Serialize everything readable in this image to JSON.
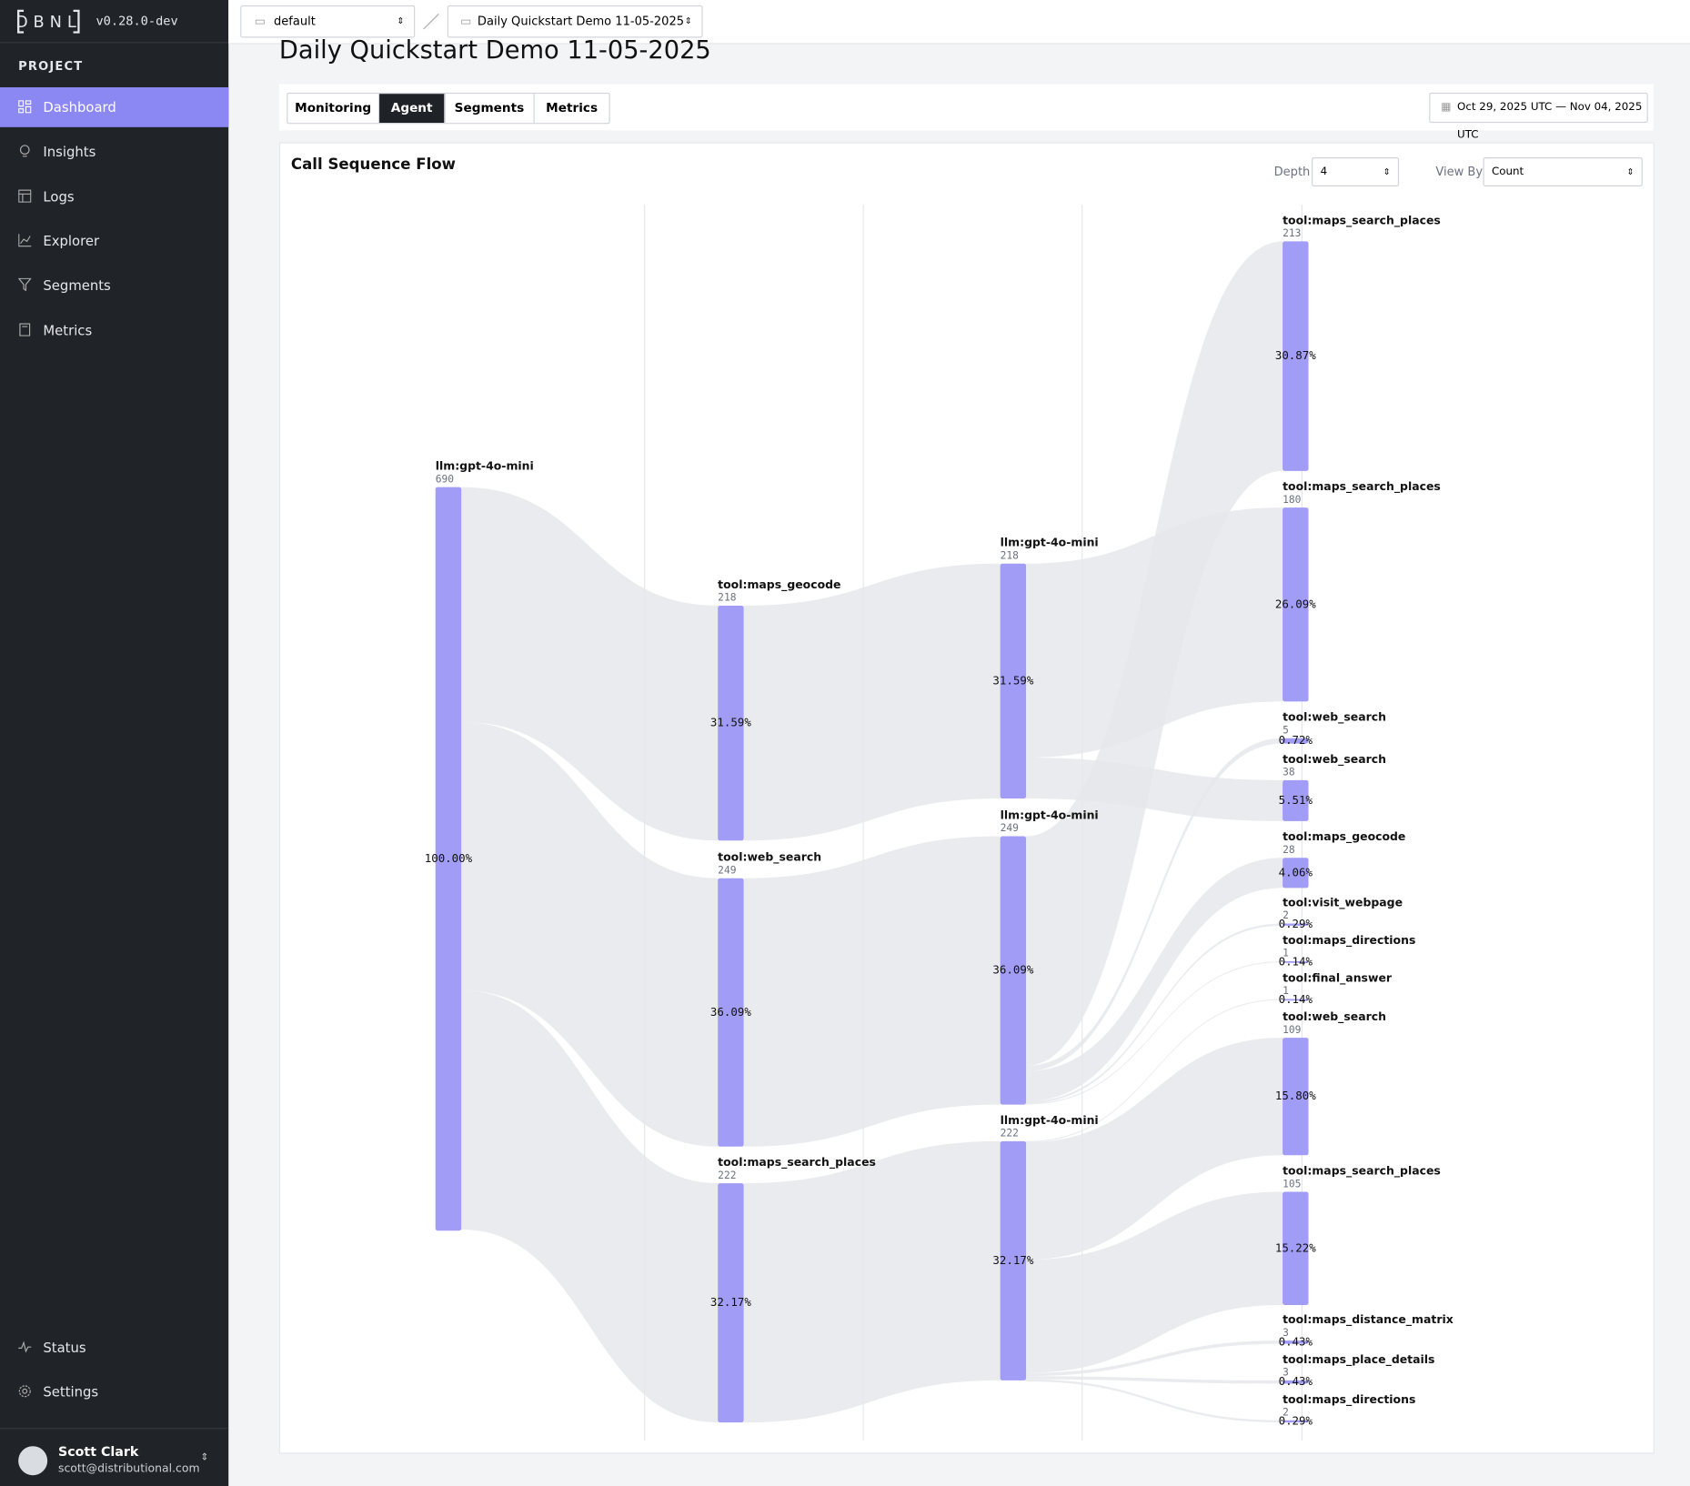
{
  "sidebar": {
    "logo": "DBNL",
    "version": "v0.28.0-dev",
    "section": "PROJECT",
    "nav": [
      "Dashboard",
      "Insights",
      "Logs",
      "Explorer",
      "Segments",
      "Metrics"
    ],
    "footer_nav": [
      "Status",
      "Settings"
    ],
    "user": {
      "name": "Scott Clark",
      "email": "scott@distributional.com"
    }
  },
  "topbar": {
    "namespace": "default",
    "project": "Daily Quickstart Demo 11-05-2025"
  },
  "page": {
    "title": "Daily Quickstart Demo 11-05-2025",
    "tabs": [
      "Monitoring",
      "Agent",
      "Segments",
      "Metrics"
    ],
    "date_range": "Oct 29, 2025 UTC — Nov 04, 2025 UTC"
  },
  "flow": {
    "title": "Call Sequence Flow",
    "depth_label": "Depth",
    "depth": 4,
    "view_by_label": "View By",
    "view_by": "Count",
    "columns": [
      [
        {
          "label": "llm:gpt-4o-mini",
          "value": 690,
          "percent": "100.00%"
        }
      ],
      [
        {
          "label": "tool:maps_geocode",
          "value": 218,
          "percent": "31.59%"
        },
        {
          "label": "tool:web_search",
          "value": 249,
          "percent": "36.09%"
        },
        {
          "label": "tool:maps_search_places",
          "value": 222,
          "percent": "32.17%"
        }
      ],
      [
        {
          "label": "llm:gpt-4o-mini",
          "value": 218,
          "percent": "31.59%"
        },
        {
          "label": "llm:gpt-4o-mini",
          "value": 249,
          "percent": "36.09%"
        },
        {
          "label": "llm:gpt-4o-mini",
          "value": 222,
          "percent": "32.17%"
        }
      ],
      [
        {
          "label": "tool:maps_search_places",
          "value": 213,
          "percent": "30.87%"
        },
        {
          "label": "tool:maps_search_places",
          "value": 180,
          "percent": "26.09%"
        },
        {
          "label": "tool:web_search",
          "value": 5,
          "percent": "0.72%"
        },
        {
          "label": "tool:web_search",
          "value": 38,
          "percent": "5.51%"
        },
        {
          "label": "tool:maps_geocode",
          "value": 28,
          "percent": "4.06%"
        },
        {
          "label": "tool:visit_webpage",
          "value": 2,
          "percent": "0.29%"
        },
        {
          "label": "tool:maps_directions",
          "value": 1,
          "percent": "0.14%"
        },
        {
          "label": "tool:final_answer",
          "value": 1,
          "percent": "0.14%"
        },
        {
          "label": "tool:web_search",
          "value": 109,
          "percent": "15.80%"
        },
        {
          "label": "tool:maps_search_places",
          "value": 105,
          "percent": "15.22%"
        },
        {
          "label": "tool:maps_distance_matrix",
          "value": 3,
          "percent": "0.43%"
        },
        {
          "label": "tool:maps_place_details",
          "value": 3,
          "percent": "0.43%"
        },
        {
          "label": "tool:maps_directions",
          "value": 2,
          "percent": "0.29%"
        }
      ]
    ]
  }
}
